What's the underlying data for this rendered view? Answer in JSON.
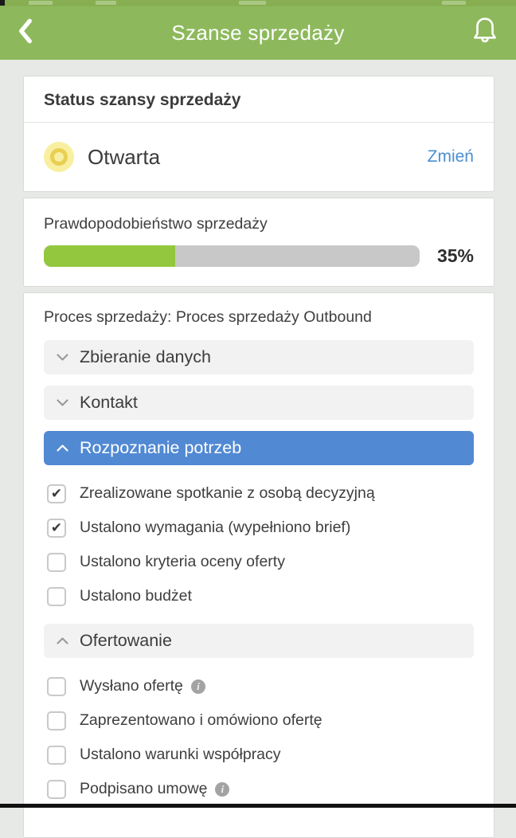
{
  "header": {
    "title": "Szanse sprzedaży"
  },
  "status_card": {
    "title": "Status szansy sprzedaży",
    "status_label": "Otwarta",
    "change_link": "Zmień"
  },
  "probability_card": {
    "label": "Prawdopodobieństwo sprzedaży",
    "percent": 35,
    "percent_label": "35%"
  },
  "process_card": {
    "title": "Proces sprzedaży: Proces sprzedaży Outbound",
    "stages": [
      {
        "label": "Zbieranie danych",
        "expanded": false,
        "active": false,
        "items": []
      },
      {
        "label": "Kontakt",
        "expanded": false,
        "active": false,
        "items": []
      },
      {
        "label": "Rozpoznanie potrzeb",
        "expanded": true,
        "active": true,
        "items": [
          {
            "label": "Zrealizowane spotkanie z osobą decyzyjną",
            "checked": true,
            "info": false
          },
          {
            "label": "Ustalono wymagania (wypełniono brief)",
            "checked": true,
            "info": false
          },
          {
            "label": "Ustalono kryteria oceny oferty",
            "checked": false,
            "info": false
          },
          {
            "label": "Ustalono budżet",
            "checked": false,
            "info": false
          }
        ]
      },
      {
        "label": "Ofertowanie",
        "expanded": true,
        "active": false,
        "items": [
          {
            "label": "Wysłano ofertę",
            "checked": false,
            "info": true
          },
          {
            "label": "Zaprezentowano i omówiono ofertę",
            "checked": false,
            "info": false
          },
          {
            "label": "Ustalono warunki współpracy",
            "checked": false,
            "info": false
          },
          {
            "label": "Podpisano umowę",
            "checked": false,
            "info": true
          }
        ]
      }
    ]
  },
  "icons": {
    "check": "✔",
    "info": "i"
  },
  "colors": {
    "header_green": "#8db95c",
    "progress_green": "#93c83e",
    "active_stage_blue": "#5189d3",
    "link_blue": "#4a90d2",
    "status_yellow": "#e9cf52"
  }
}
